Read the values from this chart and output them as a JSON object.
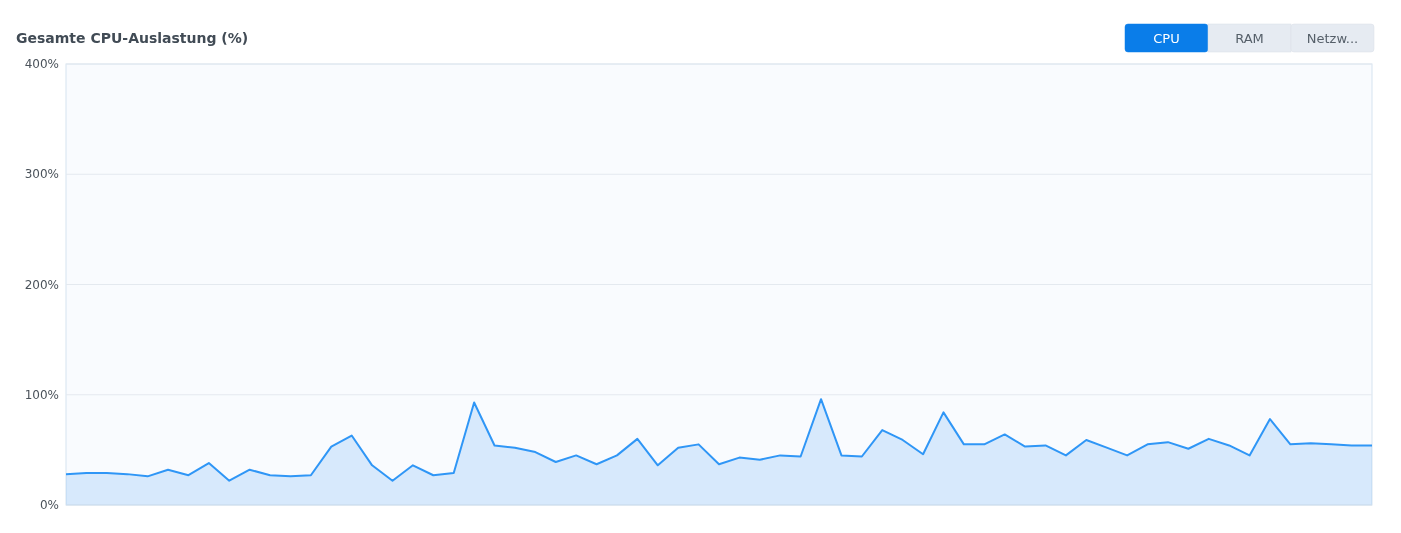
{
  "chart_data": {
    "type": "area",
    "title": "Gesamte CPU-Auslastung (%)",
    "annotations": [
      "CPU",
      "RAM",
      "Netzw..."
    ],
    "categories": [
      null,
      null,
      null,
      null,
      null,
      null,
      null,
      null,
      null,
      null,
      null,
      null,
      null,
      null,
      null,
      null,
      null,
      null,
      null,
      null,
      null,
      null,
      null,
      null,
      null,
      null,
      null,
      null,
      null,
      null,
      null,
      null,
      null,
      null,
      null,
      null,
      null,
      null,
      null,
      null,
      null,
      null,
      null,
      null,
      null,
      null,
      null,
      null,
      null,
      null,
      null,
      null,
      null,
      null,
      null,
      null,
      null,
      null,
      null,
      null,
      null,
      null,
      null,
      null,
      null
    ],
    "series": [
      {
        "color": "#2f96f6",
        "values": [
          28,
          29,
          29,
          28,
          26,
          32,
          27,
          38,
          22,
          32,
          27,
          26,
          27,
          53,
          63,
          36,
          22,
          36,
          27,
          29,
          93,
          54,
          52,
          48,
          39,
          45,
          37,
          45,
          60,
          36,
          52,
          55,
          37,
          43,
          41,
          45,
          44,
          96,
          45,
          44,
          68,
          59,
          46,
          84,
          55,
          55,
          64,
          53,
          54,
          45,
          59,
          52,
          45,
          55,
          57,
          51,
          60,
          54,
          45,
          78,
          55,
          56,
          55,
          54,
          54
        ]
      }
    ],
    "ylim": [
      0,
      400
    ],
    "yticks": [
      {
        "value": 0,
        "label": "0%"
      },
      {
        "value": 100,
        "label": "100%"
      },
      {
        "value": 200,
        "label": "200%"
      },
      {
        "value": 300,
        "label": "300%"
      },
      {
        "value": 400,
        "label": "400%"
      }
    ],
    "grid": "y"
  }
}
